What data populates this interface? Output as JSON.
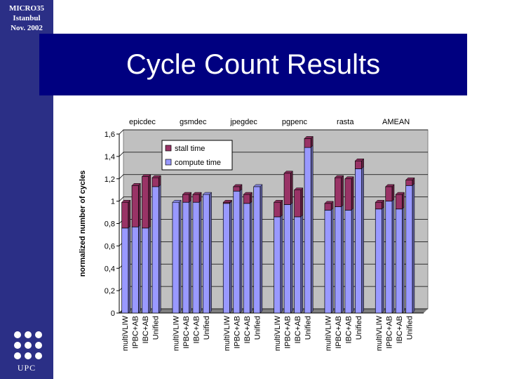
{
  "header": {
    "conference_lines": [
      "MICRO35",
      "Istanbul",
      "Nov. 2002"
    ],
    "title": "Cycle Count Results"
  },
  "logo": {
    "text": "UPC"
  },
  "colors": {
    "sidebar": "#2b2f86",
    "title_bar": "#000080",
    "compute": "#9999ff",
    "stall": "#993366",
    "plot_bg": "#c0c0c0"
  },
  "chart_data": {
    "type": "bar",
    "stacked": true,
    "ylabel": "normalized number of cycles",
    "ylim": [
      0,
      1.6
    ],
    "yticks": [
      "0",
      "0,2",
      "0,4",
      "0,6",
      "0,8",
      "1",
      "1,2",
      "1,4",
      "1,6"
    ],
    "yticks_values": [
      0,
      0.2,
      0.4,
      0.6,
      0.8,
      1,
      1.2,
      1.4,
      1.6
    ],
    "grid": true,
    "legend_position": "top-left-inside",
    "groups": [
      "epicdec",
      "gsmdec",
      "jpegdec",
      "pgpenc",
      "rasta",
      "AMEAN"
    ],
    "categories": [
      "multiVLIW",
      "IPBC+AB",
      "IBC+AB",
      "Unified"
    ],
    "series": [
      {
        "name": "compute time",
        "color": "#9999ff",
        "values": [
          [
            0.76,
            0.77,
            0.76,
            1.13
          ],
          [
            0.99,
            0.99,
            0.99,
            1.06
          ],
          [
            0.98,
            1.09,
            0.98,
            1.13
          ],
          [
            0.86,
            0.97,
            0.86,
            1.48
          ],
          [
            0.92,
            0.95,
            0.92,
            1.29
          ],
          [
            0.93,
            1.0,
            0.93,
            1.14
          ]
        ]
      },
      {
        "name": "stall time",
        "color": "#993366",
        "values": [
          [
            0.23,
            0.37,
            0.46,
            0.08
          ],
          [
            0.0,
            0.07,
            0.07,
            0.0
          ],
          [
            0.01,
            0.04,
            0.08,
            0.0
          ],
          [
            0.13,
            0.28,
            0.24,
            0.08
          ],
          [
            0.06,
            0.26,
            0.28,
            0.07
          ],
          [
            0.06,
            0.13,
            0.13,
            0.05
          ]
        ]
      }
    ]
  }
}
